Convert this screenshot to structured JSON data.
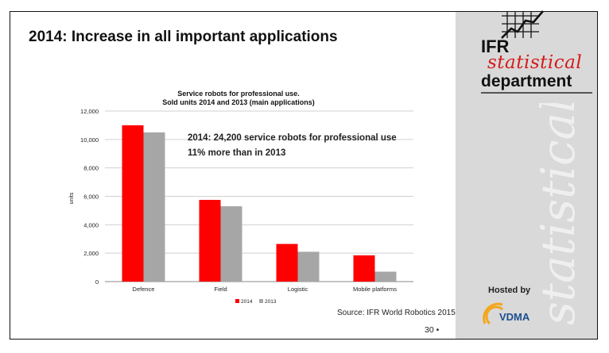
{
  "slide": {
    "title": "2014: Increase in all important applications",
    "page_number": "30 •",
    "source": "Source: IFR World Robotics 2015"
  },
  "logo": {
    "line1": "IFR",
    "line2": "statistical",
    "line3": "department",
    "watermark": "statistical"
  },
  "hosted": {
    "label": "Hosted by",
    "brand": "VDMA"
  },
  "annotation": {
    "line1": "2014: 24,200 service robots for professional use",
    "line2": "11% more than in 2013"
  },
  "colors": {
    "series_2014": "#ff0000",
    "series_2013": "#a6a6a6",
    "panel": "#d9d9d9",
    "logo_red": "#d61a1a",
    "vdma_blue": "#1d4e8f",
    "vdma_orange": "#f4a61d"
  },
  "chart_data": {
    "type": "bar",
    "title": "Service robots for professional use.",
    "subtitle": "Sold units 2014 and 2013 (main applications)",
    "ylabel": "units",
    "xlabel": "",
    "categories": [
      "Defence",
      "Field",
      "Logistic",
      "Mobile platforms"
    ],
    "series": [
      {
        "name": "2014",
        "values": [
          11000,
          5750,
          2650,
          1850
        ]
      },
      {
        "name": "2013",
        "values": [
          10500,
          5300,
          2100,
          700
        ]
      }
    ],
    "ylim": [
      0,
      12000
    ],
    "yticks": [
      0,
      2000,
      4000,
      6000,
      8000,
      10000,
      12000
    ],
    "ytick_labels": [
      "0",
      "2,000",
      "4,000",
      "6,000",
      "8,000",
      "10,000",
      "12,000"
    ],
    "grid": true,
    "legend_position": "bottom"
  }
}
